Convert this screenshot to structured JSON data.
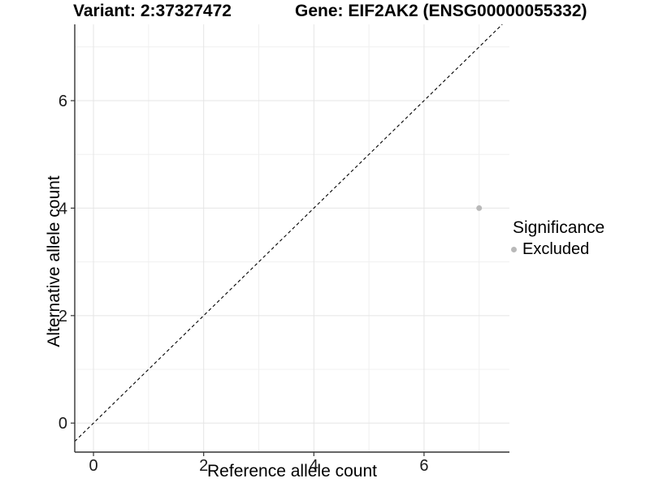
{
  "header": {
    "variant_title": "Variant: 2:37327472",
    "gene_title": "Gene: EIF2AK2 (ENSG00000055332)"
  },
  "chart_data": {
    "type": "scatter",
    "xlabel": "Reference allele count",
    "ylabel": "Alternative allele count",
    "xlim": [
      -0.34,
      7.55
    ],
    "ylim": [
      -0.54,
      7.42
    ],
    "x_ticks": [
      0,
      2,
      4,
      6
    ],
    "y_ticks": [
      0,
      2,
      4,
      6
    ],
    "x_minor_ticks": [
      1,
      3,
      5,
      7
    ],
    "y_minor_ticks": [
      1,
      3,
      5,
      7
    ],
    "grid": true,
    "identity_line": {
      "slope": 1,
      "intercept": 0,
      "style": "dashed",
      "color": "#000000"
    },
    "series": [
      {
        "name": "Excluded",
        "color": "#b9b9b9",
        "points": [
          {
            "x": 7,
            "y": 4
          }
        ]
      }
    ],
    "legend": {
      "position": "right",
      "title": "Significance",
      "items": [
        {
          "label": "Excluded",
          "color": "#b9b9b9",
          "marker": "circle"
        }
      ]
    },
    "colors": {
      "grid_major": "#e5e5e5",
      "grid_minor": "#f0f0f0",
      "axis_line": "#333333",
      "tick_label": "#1a1a1a"
    }
  }
}
